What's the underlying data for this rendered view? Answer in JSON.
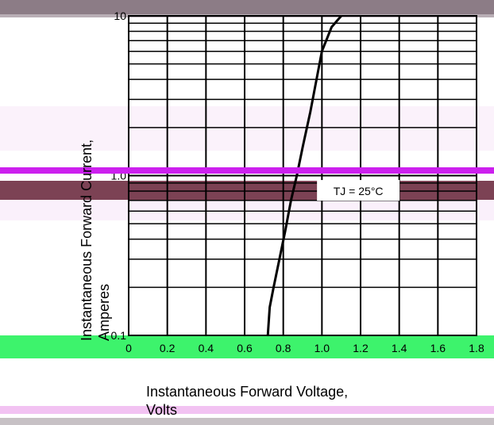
{
  "chart_data": {
    "type": "line",
    "x_label": "Instantaneous Forward Voltage, Volts",
    "y_label": "Instantaneous Forward Current, Amperes",
    "x_scale": "linear",
    "y_scale": "log",
    "xlim": [
      0,
      1.8
    ],
    "ylim": [
      0.1,
      10
    ],
    "x_ticks": [
      "0",
      "0.2",
      "0.4",
      "0.6",
      "0.8",
      "1.0",
      "1.2",
      "1.4",
      "1.6",
      "1.8"
    ],
    "y_ticks": [
      "0.1",
      "1.0",
      "10"
    ],
    "grid": true,
    "annotation": "TJ = 25°C",
    "series": [
      {
        "color": "#000000",
        "x": [
          0.72,
          0.73,
          0.75,
          0.78,
          0.81,
          0.84,
          0.87,
          0.9,
          0.94,
          0.98,
          1.0,
          1.05,
          1.1
        ],
        "y": [
          0.1,
          0.15,
          0.2,
          0.3,
          0.45,
          0.7,
          1.0,
          1.5,
          2.5,
          4.5,
          6.0,
          8.5,
          10
        ]
      }
    ]
  }
}
